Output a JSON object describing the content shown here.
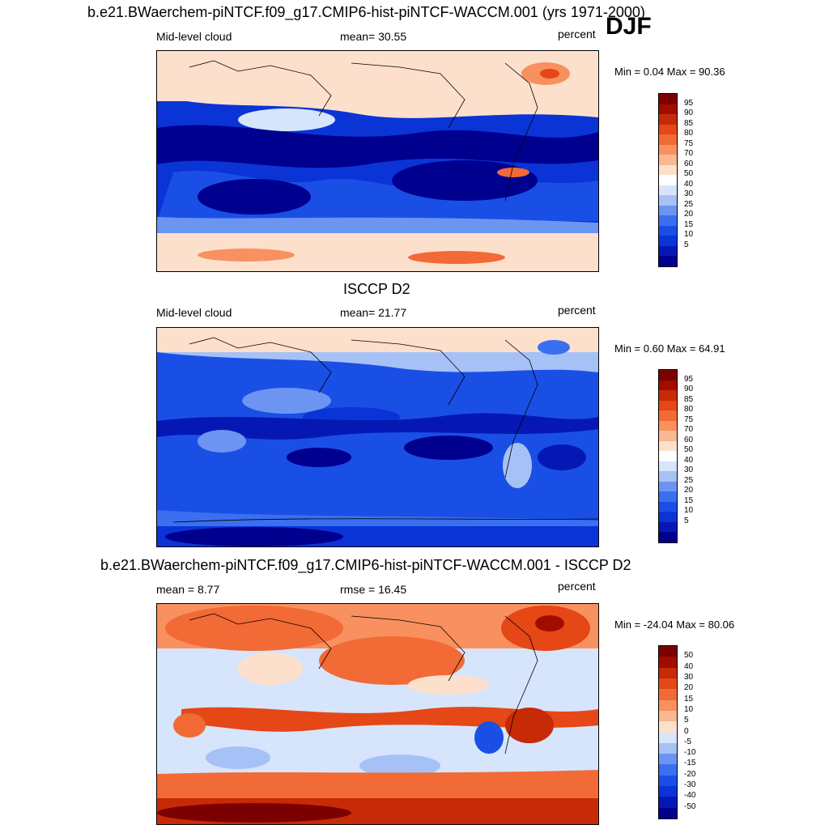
{
  "season": "DJF",
  "colors": {
    "abs_scale": [
      "#00008f",
      "#0618b4",
      "#0a34d6",
      "#1a4fe6",
      "#3a6ff0",
      "#6c95f2",
      "#a6c1f5",
      "#d6e5fb",
      "#ffffff",
      "#fde0cc",
      "#f9b891",
      "#f8915f",
      "#f26a35",
      "#e54716",
      "#c72a06",
      "#a00c00",
      "#7d0000"
    ],
    "diff_scale": [
      "#00008f",
      "#0618b4",
      "#0a34d6",
      "#1a4fe6",
      "#3a6ff0",
      "#6c95f2",
      "#a6c1f5",
      "#d6e5fb",
      "#fde0cc",
      "#f9b891",
      "#f8915f",
      "#f26a35",
      "#e54716",
      "#c72a06",
      "#a00c00",
      "#7d0000"
    ]
  },
  "chart_data": [
    {
      "type": "heatmap",
      "title": "b.e21.BWaerchem-piNTCF.f09_g17.CMIP6-hist-piNTCF-WACCM.001 (yrs 1971-2000)",
      "left_label": "Mid-level cloud",
      "center_label": "mean=  30.55",
      "mean": 30.55,
      "units": "percent",
      "minmax": "Min =   0.04 Max =  90.36",
      "min": 0.04,
      "max": 90.36,
      "levels": [
        "95",
        "90",
        "85",
        "80",
        "75",
        "70",
        "60",
        "50",
        "40",
        "30",
        "25",
        "20",
        "15",
        "10",
        "5"
      ]
    },
    {
      "type": "heatmap",
      "title": "ISCCP D2",
      "left_label": "Mid-level cloud",
      "center_label": "mean=  21.77",
      "mean": 21.77,
      "units": "percent",
      "minmax": "Min =   0.60 Max =  64.91",
      "min": 0.6,
      "max": 64.91,
      "levels": [
        "95",
        "90",
        "85",
        "80",
        "75",
        "70",
        "60",
        "50",
        "40",
        "30",
        "25",
        "20",
        "15",
        "10",
        "5"
      ]
    },
    {
      "type": "heatmap",
      "title": "b.e21.BWaerchem-piNTCF.f09_g17.CMIP6-hist-piNTCF-WACCM.001 - ISCCP D2",
      "left_label": "mean =   8.77",
      "center_label": "rmse =  16.45",
      "mean": 8.77,
      "rmse": 16.45,
      "units": "percent",
      "minmax": "Min = -24.04 Max =  80.06",
      "min": -24.04,
      "max": 80.06,
      "levels": [
        "50",
        "40",
        "30",
        "20",
        "15",
        "10",
        "5",
        "0",
        "-5",
        "-10",
        "-15",
        "-20",
        "-30",
        "-40",
        "-50"
      ]
    }
  ]
}
